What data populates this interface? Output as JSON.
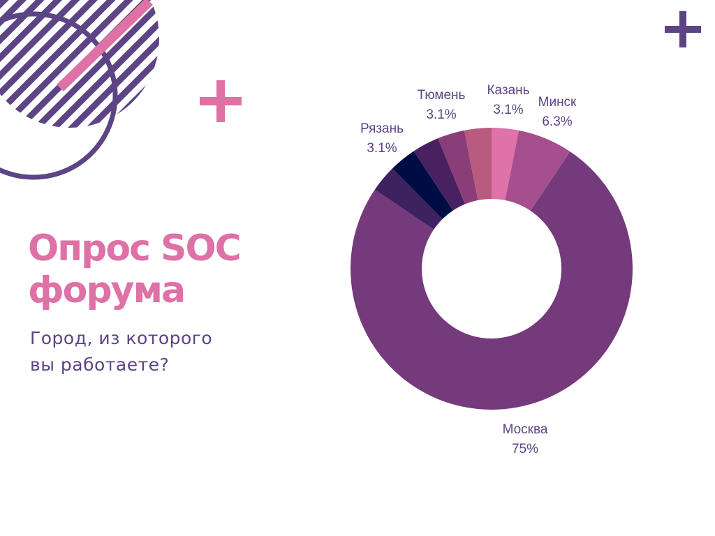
{
  "slide": {
    "title_line1": "Опрос SOC",
    "title_line2": "форума",
    "subtitle_line1": "Город, из которого",
    "subtitle_line2": "вы работаете?"
  },
  "colors": {
    "accent_pink": "#de71a6",
    "accent_purple": "#5c4485",
    "label_text": "#5c4485"
  },
  "chart_data": {
    "type": "pie",
    "donut": true,
    "title": "",
    "legend": "none",
    "slices": [
      {
        "label": "Казань",
        "value": 3.1,
        "display": "3.1%",
        "color": "#df72a8"
      },
      {
        "label": "Минск",
        "value": 6.3,
        "display": "6.3%",
        "color": "#a54f8e"
      },
      {
        "label": "Москва",
        "value": 75,
        "display": "75%",
        "color": "#753a7c"
      },
      {
        "label": "",
        "value": 3.1,
        "display": "",
        "color": "#3d2161"
      },
      {
        "label": "",
        "value": 3.1,
        "display": "",
        "color": "#000d45"
      },
      {
        "label": "",
        "value": 3.1,
        "display": "",
        "color": "#4a2160"
      },
      {
        "label": "Рязань",
        "value": 3.1,
        "display": "3.1%",
        "color": "#8a3d78"
      },
      {
        "label": "Тюмень",
        "value": 3.1,
        "display": "3.1%",
        "color": "#b85b7f"
      }
    ]
  }
}
